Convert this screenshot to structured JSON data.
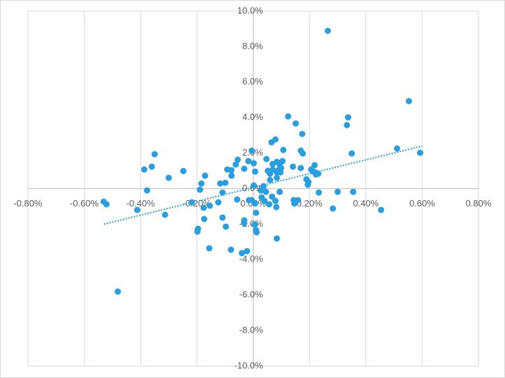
{
  "chart_data": {
    "type": "scatter",
    "color": "#2a9fdf",
    "x": [
      0.265,
      0.553,
      0.337,
      0.333,
      0.124,
      0.151,
      0.174,
      0.35,
      0.511,
      0.593,
      -0.35,
      -0.36,
      -0.387,
      -0.248,
      -0.3,
      -0.377,
      -0.412,
      -0.531,
      -0.521,
      -0.481,
      -0.313,
      -0.218,
      -0.171,
      -0.184,
      -0.189,
      -0.176,
      -0.174,
      -0.156,
      -0.196,
      -0.198,
      -0.154,
      -0.124,
      -0.117,
      -0.099,
      -0.092,
      -0.077,
      -0.077,
      -0.062,
      -0.055,
      -0.057,
      -0.109,
      -0.109,
      -0.097,
      -0.079,
      -0.04,
      -0.022,
      -0.032,
      -0.032,
      -0.032,
      -0.017,
      -0.005,
      0.002,
      0.007,
      0.002,
      -0.005,
      -0.015,
      0.007,
      0.01,
      0.005,
      0.01,
      0.012,
      0.027,
      0.037,
      0.045,
      0.03,
      0.04,
      0.047,
      0.052,
      0.06,
      0.069,
      0.06,
      0.065,
      0.079,
      0.069,
      0.084,
      0.094,
      0.104,
      0.107,
      0.089,
      0.099,
      0.084,
      0.097,
      0.084,
      0.067,
      0.079,
      0.082,
      0.057,
      0.094,
      0.084,
      0.141,
      0.169,
      0.169,
      0.176,
      0.189,
      0.196,
      0.194,
      0.206,
      0.213,
      0.218,
      0.221,
      0.231,
      0.223,
      0.144,
      0.146,
      0.159,
      0.233,
      0.283,
      0.3,
      0.355,
      0.454
    ],
    "y": [
      8.89,
      4.93,
      4.02,
      3.58,
      4.07,
      3.67,
      3.08,
      1.98,
      2.26,
      2.02,
      1.94,
      1.24,
      1.08,
      0.99,
      0.61,
      -0.1,
      -1.2,
      -0.73,
      -0.88,
      -5.8,
      -1.47,
      -0.77,
      0.73,
      0.29,
      -0.06,
      -1.08,
      -1.71,
      -3.36,
      -2.26,
      -2.42,
      -0.96,
      -0.77,
      0.29,
      0.33,
      1.08,
      1.04,
      0.73,
      1.36,
      1.63,
      -0.61,
      -0.22,
      -1.63,
      -2.14,
      -3.44,
      -3.63,
      -3.52,
      -1.79,
      -1.94,
      1.12,
      1.55,
      2.14,
      1.43,
      0.96,
      0.18,
      -0.65,
      -0.65,
      -0.84,
      -1.36,
      -2.02,
      -2.34,
      -2.46,
      -0.1,
      0.14,
      -0.18,
      -0.49,
      -0.69,
      1.67,
      1.0,
      0.84,
      1.08,
      0.49,
      2.61,
      2.77,
      1.39,
      1.51,
      1.36,
      1.55,
      2.18,
      1.04,
      1.16,
      0.92,
      0.92,
      0.61,
      -0.45,
      -0.69,
      -1.04,
      -0.88,
      -0.18,
      -2.81,
      1.24,
      1.16,
      2.14,
      1.98,
      0.53,
      0.37,
      0.22,
      1.08,
      0.96,
      1.32,
      0.92,
      0.84,
      0.8,
      -0.65,
      -0.84,
      -0.65,
      -0.22,
      -1.12,
      -0.18,
      -0.18,
      -1.2
    ],
    "trendline": {
      "x": [
        -0.53,
        0.6
      ],
      "y": [
        -2.0,
        2.4
      ],
      "color": "#2a9fdf",
      "style": "dotted"
    },
    "xlim": [
      -0.8,
      0.8
    ],
    "ylim": [
      -10,
      10
    ],
    "xticks": [
      {
        "value": -0.8,
        "label": "-0.80%"
      },
      {
        "value": -0.6,
        "label": "-0.60%"
      },
      {
        "value": -0.4,
        "label": "-0.40%"
      },
      {
        "value": -0.2,
        "label": "-0.20%"
      },
      {
        "value": 0,
        "label": "0.00%"
      },
      {
        "value": 0.2,
        "label": "0.20%"
      },
      {
        "value": 0.4,
        "label": "0.40%"
      },
      {
        "value": 0.6,
        "label": "0.60%"
      },
      {
        "value": 0.8,
        "label": "0.80%"
      }
    ],
    "yticks": [
      {
        "value": 10,
        "label": "10.0%"
      },
      {
        "value": 8,
        "label": "8.0%"
      },
      {
        "value": 6,
        "label": "6.0%"
      },
      {
        "value": 4,
        "label": "4.0%"
      },
      {
        "value": 2,
        "label": "2.0%"
      },
      {
        "value": 0,
        "label": "0.0%"
      },
      {
        "value": -2,
        "label": "-2.0%"
      },
      {
        "value": -4,
        "label": "-4.0%"
      },
      {
        "value": -6,
        "label": "-6.0%"
      },
      {
        "value": -8,
        "label": "-8.0%"
      },
      {
        "value": -10,
        "label": "-10.0%"
      }
    ],
    "xgrid": true
  }
}
